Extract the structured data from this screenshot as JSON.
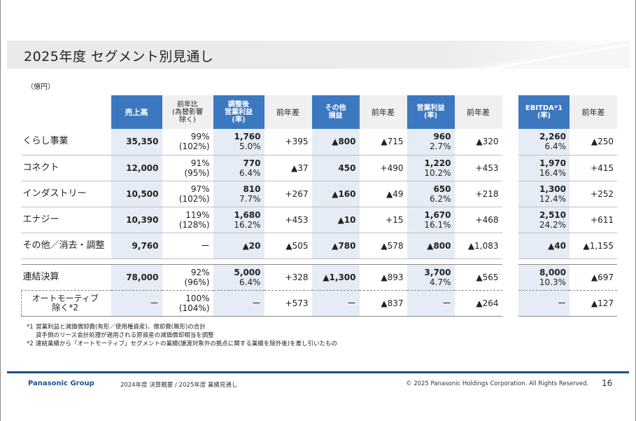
{
  "title": "2025年度  セグメント別見通し",
  "unit": "（億円）",
  "headers": {
    "sales": "売上高",
    "yoy_ratio": [
      "前年比",
      "(為替影響",
      "除く)"
    ],
    "adj_op": [
      "調整後",
      "営業利益",
      "(率)"
    ],
    "diff1": "前年差",
    "other": [
      "その他",
      "損益"
    ],
    "diff2": "前年差",
    "op_profit": [
      "営業利益",
      "(率)"
    ],
    "diff3": "前年差",
    "ebitda": [
      "EBITDA*1",
      "(率)"
    ],
    "diff4": "前年差"
  },
  "rows": [
    {
      "label": "くらし事業",
      "sales": "35,350",
      "yoy": [
        "99%",
        "(102%)"
      ],
      "adj": [
        "1,760",
        "5.0%"
      ],
      "d1": "+395",
      "other": "▲800",
      "d2": "▲715",
      "op": [
        "960",
        "2.7%"
      ],
      "d3": "▲320",
      "ebitda": [
        "2,260",
        "6.4%"
      ],
      "d4": "▲250"
    },
    {
      "label": "コネクト",
      "sales": "12,000",
      "yoy": [
        "91%",
        "(95%)"
      ],
      "adj": [
        "770",
        "6.4%"
      ],
      "d1": "▲37",
      "other": "450",
      "d2": "+490",
      "op": [
        "1,220",
        "10.2%"
      ],
      "d3": "+453",
      "ebitda": [
        "1,970",
        "16.4%"
      ],
      "d4": "+415"
    },
    {
      "label": "インダストリー",
      "sales": "10,500",
      "yoy": [
        "97%",
        "(102%)"
      ],
      "adj": [
        "810",
        "7.7%"
      ],
      "d1": "+267",
      "other": "▲160",
      "d2": "▲49",
      "op": [
        "650",
        "6.2%"
      ],
      "d3": "+218",
      "ebitda": [
        "1,300",
        "12.4%"
      ],
      "d4": "+252"
    },
    {
      "label": "エナジー",
      "sales": "10,390",
      "yoy": [
        "119%",
        "(128%)"
      ],
      "adj": [
        "1,680",
        "16.2%"
      ],
      "d1": "+453",
      "other": "▲10",
      "d2": "+15",
      "op": [
        "1,670",
        "16.1%"
      ],
      "d3": "+468",
      "ebitda": [
        "2,510",
        "24.2%"
      ],
      "d4": "+611"
    },
    {
      "label": "その他／消去・調整",
      "sales": "9,760",
      "yoy": [
        "ー",
        ""
      ],
      "adj": [
        "▲20",
        ""
      ],
      "d1": "▲505",
      "other": "▲780",
      "d2": "▲578",
      "op": [
        "▲800",
        ""
      ],
      "d3": "▲1,083",
      "ebitda": [
        "▲40",
        ""
      ],
      "d4": "▲1,155"
    }
  ],
  "consolidated": {
    "label": "連結決算",
    "sales": "78,000",
    "yoy": [
      "92%",
      "(96%)"
    ],
    "adj": [
      "5,000",
      "6.4%"
    ],
    "d1": "+328",
    "other": "▲1,300",
    "d2": "▲893",
    "op": [
      "3,700",
      "4.7%"
    ],
    "d3": "▲565",
    "ebitda": [
      "8,000",
      "10.3%"
    ],
    "d4": "▲697"
  },
  "auto_excluded": {
    "label": [
      "オートモーティブ",
      "除く*2"
    ],
    "sales": "ー",
    "yoy": [
      "100%",
      "(104%)"
    ],
    "adj": "ー",
    "d1": "+573",
    "other": "ー",
    "d2": "▲837",
    "op": "ー",
    "d3": "▲264",
    "ebitda": "ー",
    "d4": "▲127"
  },
  "notes": [
    {
      "key": "*1",
      "text": "営業利益と減価償却費(有形／使用権資産)、償却費(無形)の合計"
    },
    {
      "key": "",
      "text": "貸手側のリース会計処理が適用される原資産の減価償却相当を調整"
    },
    {
      "key": "*2",
      "text": "連結業績から「オートモーティブ」セグメントの業績(譲渡対象外の拠点に関する業績を除外後)を差し引いたもの"
    }
  ],
  "footer": {
    "brand": "Panasonic Group",
    "doc": "2024年度 決算概要 / 2025年度 業績見通し",
    "copyright": "© 2025 Panasonic Holdings Corporation. All Rights Reserved.",
    "page": "16"
  },
  "colors": {
    "header_blue": "#3c78c0",
    "shade": "#e6ecf5",
    "brand": "#1d4f91"
  }
}
